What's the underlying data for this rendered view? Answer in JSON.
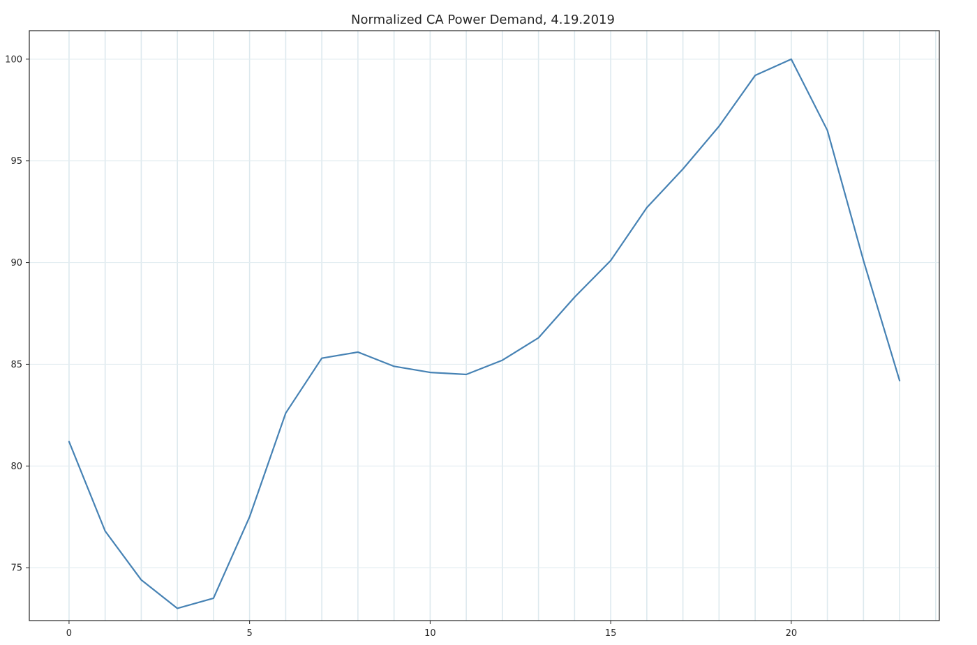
{
  "chart_data": {
    "type": "line",
    "title": "Normalized CA Power Demand, 4.19.2019",
    "xlabel": "",
    "ylabel": "",
    "x": [
      0,
      1,
      2,
      3,
      4,
      5,
      6,
      7,
      8,
      9,
      10,
      11,
      12,
      13,
      14,
      15,
      16,
      17,
      18,
      19,
      20,
      21,
      22,
      23
    ],
    "series": [
      {
        "values": [
          81.2,
          76.8,
          74.4,
          73.0,
          73.5,
          77.5,
          82.6,
          85.3,
          85.6,
          84.9,
          84.6,
          84.5,
          85.2,
          86.3,
          88.3,
          90.1,
          92.7,
          94.6,
          96.7,
          99.2,
          100.0,
          96.5,
          90.1,
          84.2
        ],
        "color": "#4682b4"
      }
    ],
    "xlim": [
      -1.1,
      24.1
    ],
    "ylim": [
      72.4,
      101.4
    ],
    "xticks": [
      0,
      5,
      10,
      15,
      20
    ],
    "yticks": [
      75,
      80,
      85,
      90,
      95,
      100
    ],
    "x_gridlines": [
      0,
      1,
      2,
      3,
      4,
      5,
      6,
      7,
      8,
      9,
      10,
      11,
      12,
      13,
      14,
      15,
      16,
      17,
      18,
      19,
      20,
      21,
      22,
      23,
      24
    ],
    "grid": true,
    "legend": "none"
  }
}
